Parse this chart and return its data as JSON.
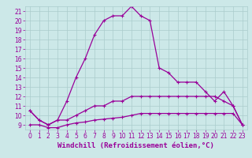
{
  "xlabel": "Windchill (Refroidissement éolien,°C)",
  "x": [
    0,
    1,
    2,
    3,
    4,
    5,
    6,
    7,
    8,
    9,
    10,
    11,
    12,
    13,
    14,
    15,
    16,
    17,
    18,
    19,
    20,
    21,
    22,
    23
  ],
  "line1": [
    10.5,
    9.5,
    9.0,
    9.5,
    11.5,
    14.0,
    16.0,
    18.5,
    20.0,
    20.5,
    20.5,
    21.5,
    20.5,
    20.0,
    15.0,
    14.5,
    13.5,
    13.5,
    13.5,
    12.5,
    11.5,
    12.5,
    11.0,
    9.0
  ],
  "line2": [
    10.5,
    9.5,
    9.0,
    9.5,
    9.5,
    10.0,
    10.5,
    11.0,
    11.0,
    11.5,
    11.5,
    12.0,
    12.0,
    12.0,
    12.0,
    12.0,
    12.0,
    12.0,
    12.0,
    12.0,
    12.0,
    11.5,
    11.0,
    9.0
  ],
  "line3": [
    9.0,
    9.0,
    8.7,
    8.7,
    9.0,
    9.2,
    9.3,
    9.5,
    9.6,
    9.7,
    9.8,
    10.0,
    10.2,
    10.2,
    10.2,
    10.2,
    10.2,
    10.2,
    10.2,
    10.2,
    10.2,
    10.2,
    10.2,
    9.0
  ],
  "color": "#990099",
  "bg_color": "#cce8e8",
  "grid_color": "#aacccc",
  "ylim": [
    8.5,
    21.5
  ],
  "xlim": [
    -0.5,
    23.5
  ],
  "yticks": [
    9,
    10,
    11,
    12,
    13,
    14,
    15,
    16,
    17,
    18,
    19,
    20,
    21
  ],
  "xticks": [
    0,
    1,
    2,
    3,
    4,
    5,
    6,
    7,
    8,
    9,
    10,
    11,
    12,
    13,
    14,
    15,
    16,
    17,
    18,
    19,
    20,
    21,
    22,
    23
  ],
  "tick_fontsize": 5.5,
  "label_fontsize": 6.5
}
